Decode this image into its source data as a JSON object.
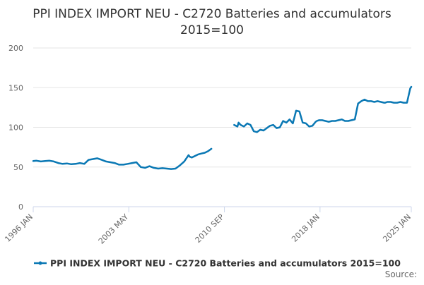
{
  "chart_data": {
    "type": "line",
    "title": "PPI INDEX IMPORT NEU - C2720 Batteries and accumulators",
    "subtitle": "2015=100",
    "xlabel": "",
    "ylabel": "",
    "ylim": [
      0,
      200
    ],
    "yticks": [
      "0",
      "50",
      "100",
      "150",
      "200"
    ],
    "xticks": [
      "1996 JAN",
      "2003 MAY",
      "2010 SEP",
      "2018 JAN",
      "2025 JAN"
    ],
    "grid": "horizontal",
    "legend_position": "bottom",
    "colors": {
      "series": "#0a78b4",
      "grid": "#e6e6e6",
      "axis": "#ccd6eb"
    },
    "source_label": "Source:",
    "series": [
      {
        "name": "PPI INDEX IMPORT NEU - C2720 Batteries and accumulators 2015=100",
        "segments": [
          {
            "x": [
              "1996-01",
              "1996-04",
              "1996-08",
              "1996-12",
              "1997-04",
              "1997-08",
              "1997-12",
              "1998-04",
              "1998-08",
              "1998-12",
              "1999-04",
              "1999-08",
              "1999-12",
              "2000-04",
              "2000-08",
              "2000-12",
              "2001-04",
              "2001-08",
              "2001-12",
              "2002-04",
              "2002-08",
              "2002-12",
              "2003-04",
              "2003-08",
              "2003-12",
              "2004-04",
              "2004-08",
              "2004-12",
              "2005-04",
              "2005-08",
              "2005-12",
              "2006-04",
              "2006-08",
              "2006-12",
              "2007-04",
              "2007-08",
              "2007-12",
              "2008-01",
              "2008-03",
              "2008-06",
              "2008-09",
              "2008-12",
              "2009-03",
              "2009-06",
              "2009-09"
            ],
            "y": [
              57.5,
              58,
              57,
              57.5,
              58,
              57,
              55,
              54,
              54.5,
              53.5,
              54,
              55,
              54,
              59,
              60,
              61,
              59,
              57,
              56,
              55,
              53,
              53,
              54,
              55,
              56,
              50,
              49,
              51,
              49,
              48,
              48.5,
              48,
              47.5,
              48,
              52,
              57,
              65,
              63,
              62,
              64,
              66,
              67,
              68,
              70,
              73
            ]
          },
          {
            "x": [
              "2011-06",
              "2011-09",
              "2011-10",
              "2011-12",
              "2012-03",
              "2012-06",
              "2012-09",
              "2012-12",
              "2013-03",
              "2013-06",
              "2013-09",
              "2013-12",
              "2014-03",
              "2014-06",
              "2014-09",
              "2014-12",
              "2015-03",
              "2015-06",
              "2015-09",
              "2015-12",
              "2016-03",
              "2016-06",
              "2016-09",
              "2016-12",
              "2017-03",
              "2017-06",
              "2017-09",
              "2017-10",
              "2017-12",
              "2018-03",
              "2018-06",
              "2018-09",
              "2018-12",
              "2019-03",
              "2019-06",
              "2019-09",
              "2019-12",
              "2020-03",
              "2020-06",
              "2020-09",
              "2020-12",
              "2021-03",
              "2021-06",
              "2021-09",
              "2021-12",
              "2022-03",
              "2022-06",
              "2022-09",
              "2022-12",
              "2023-01",
              "2023-03",
              "2023-06",
              "2023-09",
              "2023-12",
              "2024-03",
              "2024-06",
              "2024-09",
              "2024-12",
              "2025-01"
            ],
            "y": [
              103,
              101,
              106,
              103,
              101,
              105,
              103,
              95,
              94,
              97,
              96,
              99,
              102,
              103,
              99,
              100,
              108,
              106,
              110,
              105,
              121,
              120,
              106,
              105,
              101,
              102,
              107,
              108,
              109,
              109,
              108,
              107,
              108,
              108,
              109,
              110,
              108,
              108,
              109,
              110,
              130,
              133,
              135,
              133,
              133,
              132,
              133,
              132,
              131,
              131,
              132,
              132,
              131,
              131,
              132,
              131,
              131,
              149,
              151
            ]
          }
        ]
      }
    ]
  }
}
